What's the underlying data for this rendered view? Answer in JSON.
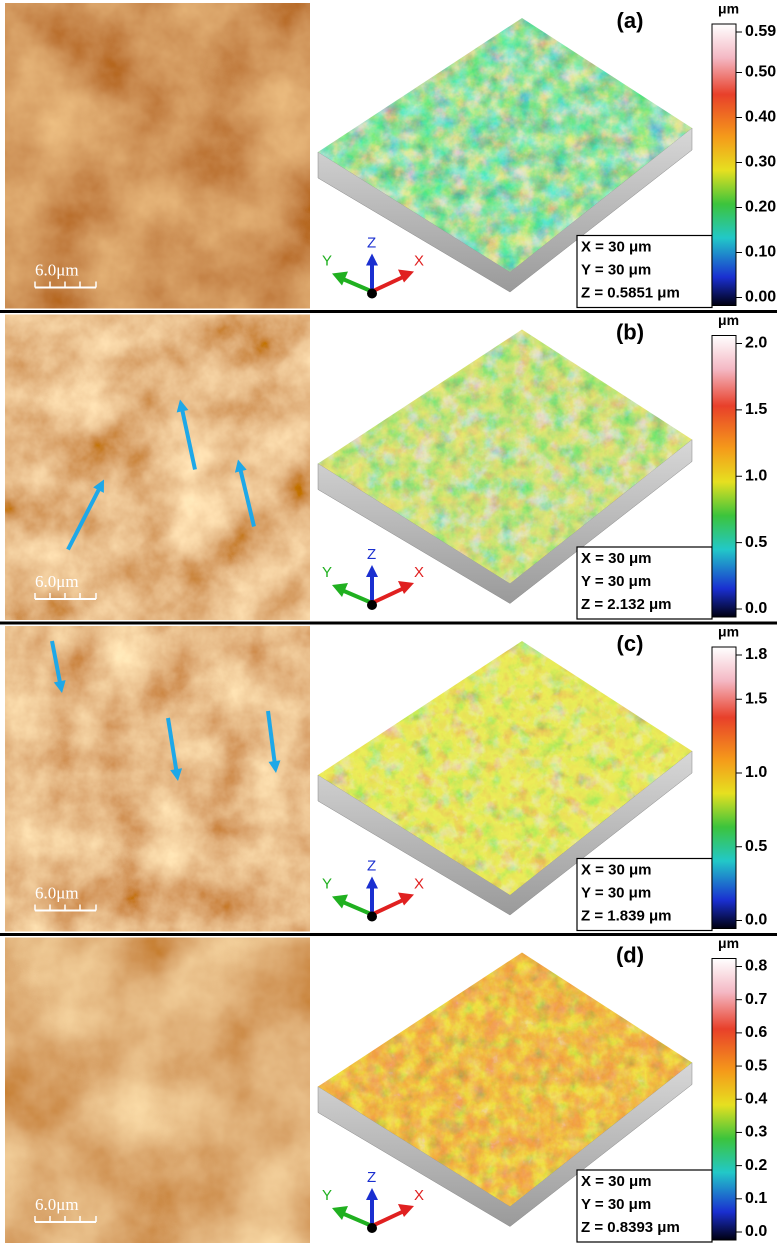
{
  "panels": [
    {
      "label": "(a)",
      "scale_bar": "6.0μm",
      "colorbar_unit": "μm",
      "colorbar_ticks": [
        "0.59",
        "0.50",
        "0.40",
        "0.30",
        "0.20",
        "0.10",
        "0.00"
      ],
      "dimensions": [
        "X = 30 μm",
        "Y = 30 μm",
        "Z = 0.5851 μm"
      ],
      "axes": [
        "X",
        "Y",
        "Z"
      ]
    },
    {
      "label": "(b)",
      "scale_bar": "6.0μm",
      "colorbar_unit": "μm",
      "colorbar_ticks": [
        "2.0",
        "1.5",
        "1.0",
        "0.5",
        "0.0"
      ],
      "dimensions": [
        "X = 30 μm",
        "Y = 30 μm",
        "Z = 2.132 μm"
      ],
      "axes": [
        "X",
        "Y",
        "Z"
      ]
    },
    {
      "label": "(c)",
      "scale_bar": "6.0μm",
      "colorbar_unit": "μm",
      "colorbar_ticks": [
        "1.8",
        "1.5",
        "1.0",
        "0.5",
        "0.0"
      ],
      "dimensions": [
        "X = 30 μm",
        "Y = 30 μm",
        "Z = 1.839 μm"
      ],
      "axes": [
        "X",
        "Y",
        "Z"
      ]
    },
    {
      "label": "(d)",
      "scale_bar": "6.0μm",
      "colorbar_unit": "μm",
      "colorbar_ticks": [
        "0.8",
        "0.7",
        "0.6",
        "0.5",
        "0.4",
        "0.3",
        "0.2",
        "0.1",
        "0.0"
      ],
      "dimensions": [
        "X = 30 μm",
        "Y = 30 μm",
        "Z = 0.8393 μm"
      ],
      "axes": [
        "X",
        "Y",
        "Z"
      ]
    }
  ]
}
